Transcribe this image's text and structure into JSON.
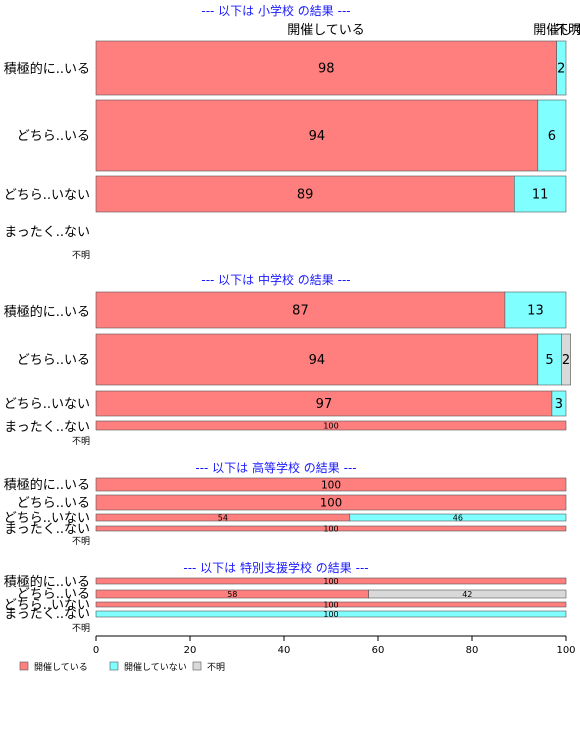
{
  "legend": [
    {
      "name": "開催している",
      "color": "#ff7f7f"
    },
    {
      "name": "開催していない",
      "color": "#7fffff"
    },
    {
      "name": "不明",
      "color": "#d9d9d9"
    }
  ],
  "top_labels": [
    "開催している",
    "開催して",
    "不明"
  ],
  "chart_data": {
    "type": "bar",
    "orientation": "horizontal",
    "stacked": "percent",
    "xlim": [
      0,
      100
    ],
    "x_ticks": [
      0,
      20,
      40,
      60,
      80,
      100
    ],
    "categories": [
      "積極的に..いる",
      "どちら..いる",
      "どちら..いない",
      "まったく..ない",
      "不明"
    ],
    "panels": [
      {
        "title": "--- 以下は 小学校 の結果 ---",
        "rows": [
          {
            "label": "積極的に..いる",
            "values": [
              98,
              2,
              0
            ]
          },
          {
            "label": "どちら..いる",
            "values": [
              94,
              6,
              0
            ]
          },
          {
            "label": "どちら..いない",
            "values": [
              89,
              11,
              0
            ]
          },
          {
            "label": "まったく..ない",
            "values": null
          },
          {
            "label": "不明",
            "values": null
          }
        ]
      },
      {
        "title": "--- 以下は 中学校 の結果 ---",
        "rows": [
          {
            "label": "積極的に..いる",
            "values": [
              87,
              13,
              0
            ]
          },
          {
            "label": "どちら..いる",
            "values": [
              94,
              5,
              2
            ]
          },
          {
            "label": "どちら..いない",
            "values": [
              97,
              3,
              0
            ]
          },
          {
            "label": "まったく..ない",
            "values": [
              100,
              0,
              0
            ]
          },
          {
            "label": "不明",
            "values": null
          }
        ]
      },
      {
        "title": "--- 以下は 高等学校 の結果 ---",
        "rows": [
          {
            "label": "積極的に..いる",
            "values": [
              100,
              0,
              0
            ]
          },
          {
            "label": "どちら..いる",
            "values": [
              100,
              0,
              0
            ]
          },
          {
            "label": "どちら..いない",
            "values": [
              54,
              46,
              0
            ]
          },
          {
            "label": "まったく..ない",
            "values": [
              100,
              0,
              0
            ]
          },
          {
            "label": "不明",
            "values": null
          }
        ]
      },
      {
        "title": "--- 以下は 特別支援学校 の結果 ---",
        "rows": [
          {
            "label": "積極的に..いる",
            "values": [
              100,
              0,
              0
            ]
          },
          {
            "label": "どちら..いる",
            "values": [
              58,
              0,
              42
            ]
          },
          {
            "label": "どちら..いない",
            "values": [
              100,
              0,
              0
            ]
          },
          {
            "label": "まったく..ない",
            "values": [
              0,
              100,
              0
            ]
          },
          {
            "label": "不明",
            "values": null
          }
        ]
      }
    ]
  }
}
